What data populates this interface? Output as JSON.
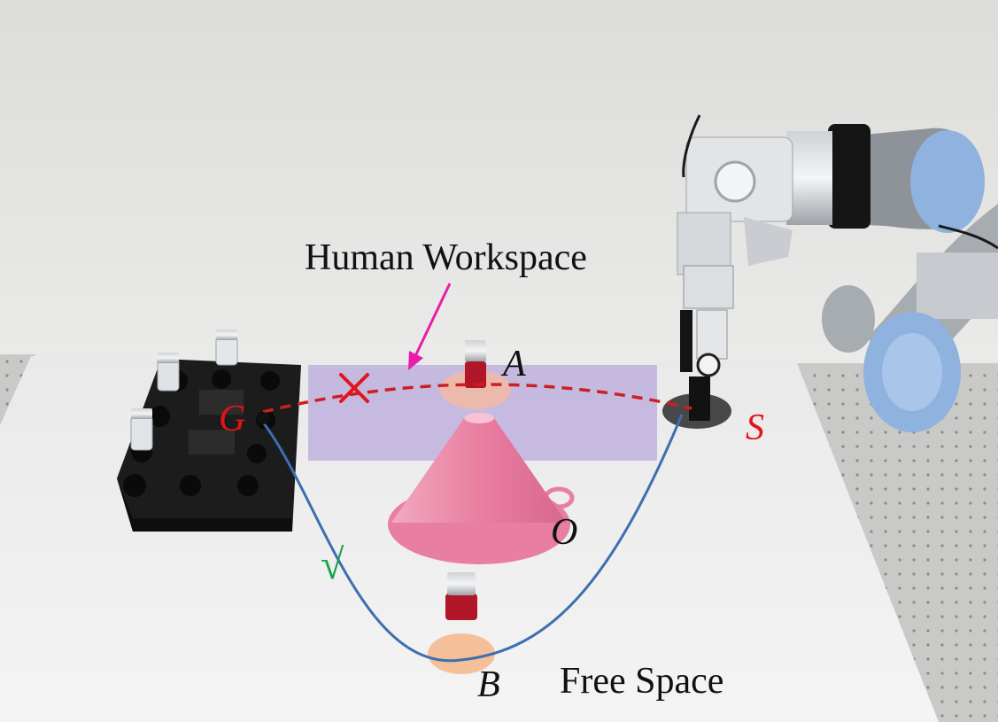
{
  "labels": {
    "human_workspace": "Human Workspace",
    "free_space": "Free Space",
    "point_a": "A",
    "point_b": "B",
    "point_o": "O",
    "point_g": "G",
    "point_s": "S",
    "check_mark": "√"
  },
  "colors": {
    "human_workspace_region": "#b9a6dc",
    "blocked_path": "#cc1f1f",
    "free_path": "#3d6fb0",
    "arrow": "#e81ea8",
    "cross": "#e1141b",
    "check": "#15a34a",
    "obstacle_cone": "#e97ea0"
  }
}
